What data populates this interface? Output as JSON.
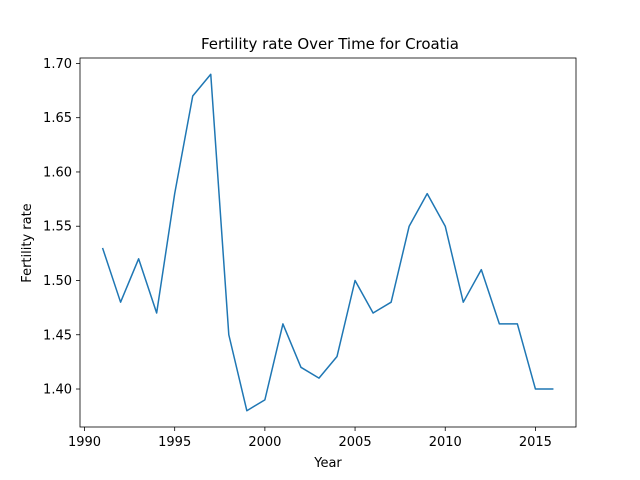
{
  "chart_data": {
    "type": "line",
    "title": "Fertility rate Over Time for Croatia",
    "xlabel": "Year",
    "ylabel": "Fertility rate",
    "xlim": [
      1989.75,
      2017.25
    ],
    "ylim": [
      1.365,
      1.705
    ],
    "xticks": [
      1990,
      1995,
      2000,
      2005,
      2010,
      2015
    ],
    "xtick_labels": [
      "1990",
      "1995",
      "2000",
      "2005",
      "2010",
      "2015"
    ],
    "yticks": [
      1.4,
      1.45,
      1.5,
      1.55,
      1.6,
      1.65,
      1.7
    ],
    "ytick_labels": [
      "1.40",
      "1.45",
      "1.50",
      "1.55",
      "1.60",
      "1.65",
      "1.70"
    ],
    "grid": false,
    "series": [
      {
        "color": "#1f77b4",
        "x": [
          1991,
          1992,
          1993,
          1994,
          1995,
          1996,
          1997,
          1998,
          1999,
          2000,
          2001,
          2002,
          2003,
          2004,
          2005,
          2006,
          2007,
          2008,
          2009,
          2010,
          2011,
          2012,
          2013,
          2014,
          2015,
          2016
        ],
        "y": [
          1.53,
          1.48,
          1.52,
          1.47,
          1.58,
          1.67,
          1.69,
          1.45,
          1.38,
          1.39,
          1.46,
          1.42,
          1.41,
          1.43,
          1.5,
          1.47,
          1.48,
          1.55,
          1.58,
          1.55,
          1.48,
          1.51,
          1.46,
          1.46,
          1.4,
          1.4
        ]
      }
    ]
  }
}
